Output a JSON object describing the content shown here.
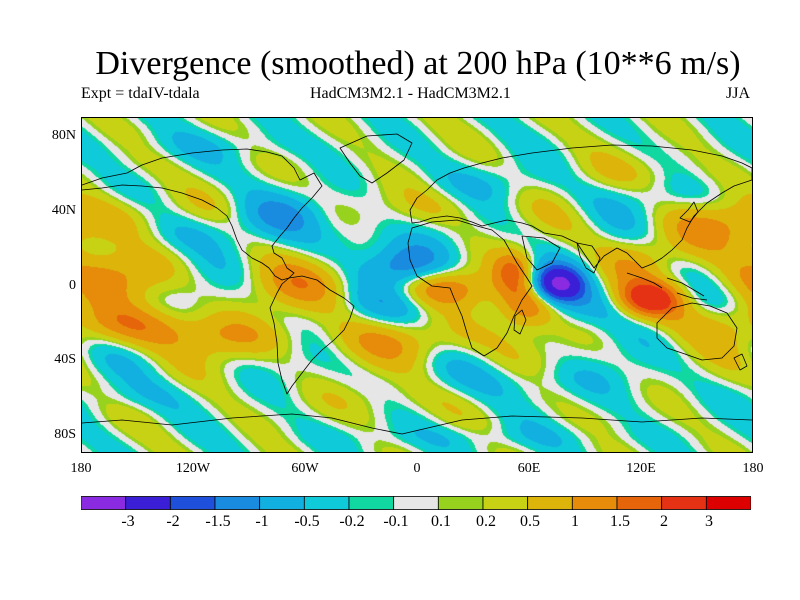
{
  "title": "Divergence (smoothed) at 200 hPa (10**6 m/s)",
  "subtitle_left": "Expt = tdaIV-tdala",
  "subtitle_center": "HadCM3M2.1 - HadCM3M2.1",
  "subtitle_right": "JJA",
  "lat_labels": [
    "80N",
    "40N",
    "0",
    "40S",
    "80S"
  ],
  "lon_labels": [
    "180",
    "120W",
    "60W",
    "0",
    "60E",
    "120E",
    "180"
  ],
  "colorbar": {
    "colors": [
      "#8a2be2",
      "#3a1fd6",
      "#1e50dc",
      "#1a8ce0",
      "#12b0e0",
      "#0fcad8",
      "#10d8a0",
      "#e6e6e6",
      "#96d21e",
      "#c8d214",
      "#dcb40a",
      "#e68c0a",
      "#e6640a",
      "#e63214",
      "#dc0000"
    ],
    "labels": [
      "-3",
      "-2",
      "-1.5",
      "-1",
      "-0.5",
      "-0.2",
      "-0.1",
      "0.1",
      "0.2",
      "0.5",
      "1",
      "1.5",
      "2",
      "3"
    ]
  },
  "chart_data": {
    "type": "heatmap",
    "title": "Divergence (smoothed) at 200 hPa (10**6 m/s)",
    "variable": "200 hPa divergence difference, JJA",
    "units": "10**6 m/s",
    "x_range": [
      -180,
      180
    ],
    "y_range": [
      -90,
      90
    ],
    "levels": [
      -3,
      -2,
      -1.5,
      -1,
      -0.5,
      -0.2,
      -0.1,
      0.1,
      0.2,
      0.5,
      1,
      1.5,
      2,
      3
    ],
    "features": [
      {
        "lon": 75,
        "lat": 0,
        "value": -3.2,
        "width_lon": 10,
        "width_lat": 7
      },
      {
        "lon": -5,
        "lat": 10,
        "value": -1.6,
        "width_lon": 15,
        "width_lat": 9
      },
      {
        "lon": -120,
        "lat": 28,
        "value": -0.6,
        "width_lon": 22,
        "width_lat": 8
      },
      {
        "lon": -75,
        "lat": 38,
        "value": -0.7,
        "width_lon": 18,
        "width_lat": 8
      },
      {
        "lon": -30,
        "lat": 28,
        "value": -0.5,
        "width_lon": 14,
        "width_lat": 8
      },
      {
        "lon": -12,
        "lat": -8,
        "value": -0.8,
        "width_lon": 22,
        "width_lat": 8
      },
      {
        "lon": 95,
        "lat": -12,
        "value": -0.8,
        "width_lon": 25,
        "width_lat": 8
      },
      {
        "lon": 45,
        "lat": 55,
        "value": -0.5,
        "width_lon": 22,
        "width_lat": 8
      },
      {
        "lon": 140,
        "lat": 48,
        "value": -0.3,
        "width_lon": 30,
        "width_lat": 7
      },
      {
        "lon": 60,
        "lat": -52,
        "value": -0.4,
        "width_lon": 35,
        "width_lat": 7
      },
      {
        "lon": -150,
        "lat": -60,
        "value": -0.3,
        "width_lon": 25,
        "width_lat": 6
      },
      {
        "lon": 30,
        "lat": -82,
        "value": -0.3,
        "width_lon": 60,
        "width_lat": 5
      },
      {
        "lon": -110,
        "lat": 75,
        "value": -0.3,
        "width_lon": 40,
        "width_lat": 6
      },
      {
        "lon": 125,
        "lat": -8,
        "value": 2.6,
        "width_lon": 13,
        "width_lat": 7
      },
      {
        "lon": 60,
        "lat": -10,
        "value": 2.1,
        "width_lon": 12,
        "width_lat": 9
      },
      {
        "lon": 52,
        "lat": 8,
        "value": 1.4,
        "width_lon": 8,
        "width_lat": 8
      },
      {
        "lon": 10,
        "lat": -2,
        "value": 1.4,
        "width_lon": 20,
        "width_lat": 7
      },
      {
        "lon": -55,
        "lat": 0,
        "value": 0.8,
        "width_lon": 30,
        "width_lat": 10
      },
      {
        "lon": -170,
        "lat": 5,
        "value": 1.0,
        "width_lon": 25,
        "width_lat": 10
      },
      {
        "lon": -150,
        "lat": -22,
        "value": 1.1,
        "width_lon": 22,
        "width_lat": 8
      },
      {
        "lon": -100,
        "lat": -28,
        "value": 0.8,
        "width_lon": 28,
        "width_lat": 8
      },
      {
        "lon": 0,
        "lat": -30,
        "value": 0.8,
        "width_lon": 30,
        "width_lat": 8
      },
      {
        "lon": -160,
        "lat": 35,
        "value": 0.8,
        "width_lon": 20,
        "width_lat": 10
      },
      {
        "lon": 160,
        "lat": 30,
        "value": 0.9,
        "width_lon": 20,
        "width_lat": 10
      },
      {
        "lon": 15,
        "lat": 42,
        "value": 0.5,
        "width_lon": 20,
        "width_lat": 8
      },
      {
        "lon": 110,
        "lat": 60,
        "value": 0.4,
        "width_lon": 25,
        "width_lat": 8
      },
      {
        "lon": 120,
        "lat": 15,
        "value": 0.6,
        "width_lon": 15,
        "width_lat": 8
      },
      {
        "lon": 160,
        "lat": -20,
        "value": 0.5,
        "width_lon": 25,
        "width_lat": 8
      },
      {
        "lon": -20,
        "lat": -62,
        "value": 0.3,
        "width_lon": 30,
        "width_lat": 7
      }
    ]
  }
}
